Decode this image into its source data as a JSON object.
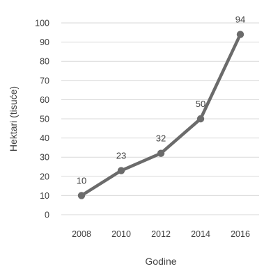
{
  "chart_data": {
    "type": "line",
    "title": "",
    "xlabel": "Godine",
    "ylabel": "Hektari (tisuće)",
    "x": [
      "2008",
      "2010",
      "2012",
      "2014",
      "2016"
    ],
    "series": [
      {
        "values": [
          10,
          23,
          32,
          50,
          94
        ],
        "data_labels": [
          "10",
          "23",
          "32",
          "50",
          "94"
        ]
      }
    ],
    "ylim": [
      0,
      100
    ],
    "yticks": [
      "0",
      "10",
      "20",
      "30",
      "40",
      "50",
      "60",
      "70",
      "80",
      "90",
      "100"
    ],
    "grid": "horizontal",
    "legend": "none",
    "colors": {
      "line": "#6b6b6b",
      "grid": "#d9d9d9",
      "text": "#404040"
    }
  }
}
